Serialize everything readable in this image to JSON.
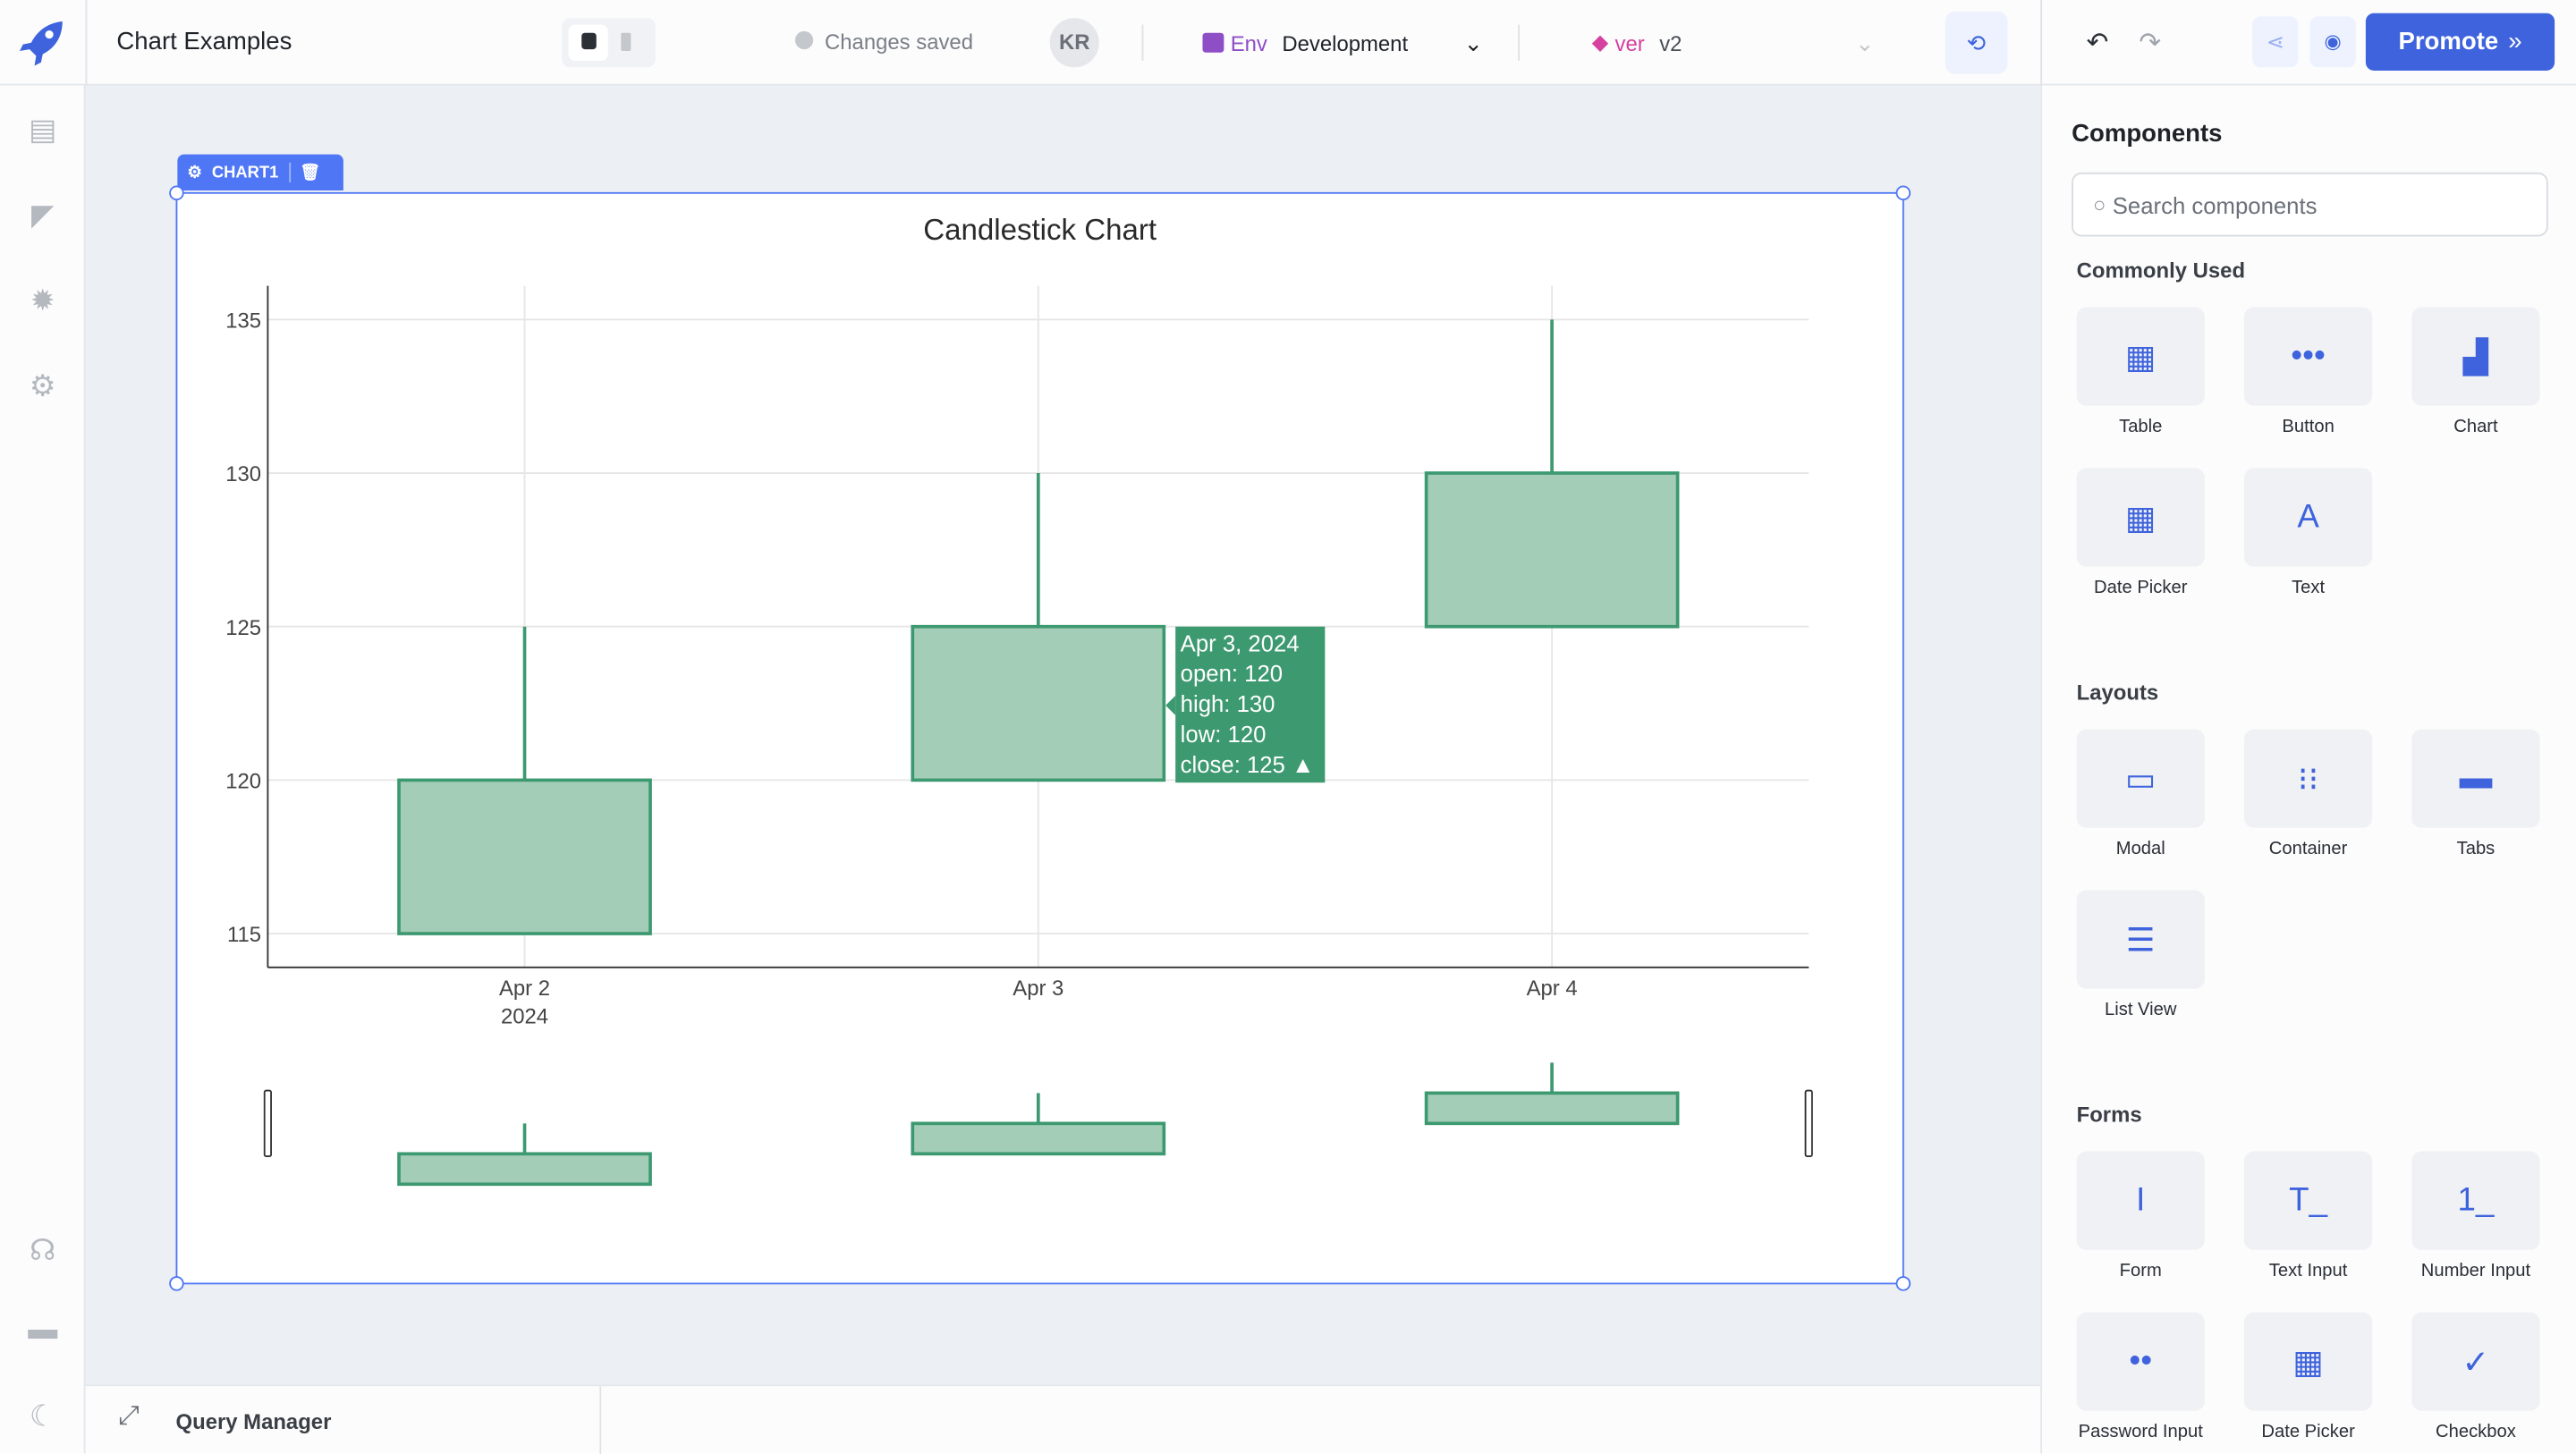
{
  "app": {
    "title": "Chart Examples",
    "save_status": "Changes saved",
    "avatar": "KR"
  },
  "env": {
    "label": "Env",
    "value": "Development"
  },
  "version": {
    "label": "ver",
    "value": "v2"
  },
  "toolbar": {
    "promote_label": "Promote",
    "promote_icon": "double-chevron-right"
  },
  "widget": {
    "name": "CHART1"
  },
  "query_manager": {
    "label": "Query Manager"
  },
  "components": {
    "title": "Components",
    "search_placeholder": "Search components",
    "commonly_used": {
      "title": "Commonly Used",
      "items": [
        "Table",
        "Button",
        "Chart",
        "Date Picker",
        "Text"
      ]
    },
    "layouts": {
      "title": "Layouts",
      "items": [
        "Modal",
        "Container",
        "Tabs",
        "List View"
      ]
    },
    "forms": {
      "title": "Forms",
      "items": [
        "Form",
        "Text Input",
        "Number Input",
        "Password Input",
        "Date Picker",
        "Checkbox"
      ]
    }
  },
  "chart_data": {
    "type": "candlestick",
    "title": "Candlestick Chart",
    "categories": [
      "Apr 2",
      "Apr 3",
      "Apr 4"
    ],
    "x_tick_sublabel": "2024",
    "open": [
      115,
      120,
      125
    ],
    "high": [
      125,
      130,
      135
    ],
    "low": [
      115,
      120,
      125
    ],
    "close": [
      120,
      125,
      130
    ],
    "yticks": [
      115,
      120,
      125,
      130,
      135
    ],
    "ylim": [
      113.9,
      136.1
    ],
    "grid": true,
    "increasing_color": "#3d9970",
    "range_slider": true,
    "tooltip": {
      "date": "Apr 3, 2024",
      "open": "open: 120",
      "high": "high: 130",
      "low": "low: 120",
      "close": "close: 125 ▲"
    }
  },
  "colors": {
    "accent": "#3e63dd",
    "env": "#8e4ec6",
    "version": "#d6409f"
  }
}
